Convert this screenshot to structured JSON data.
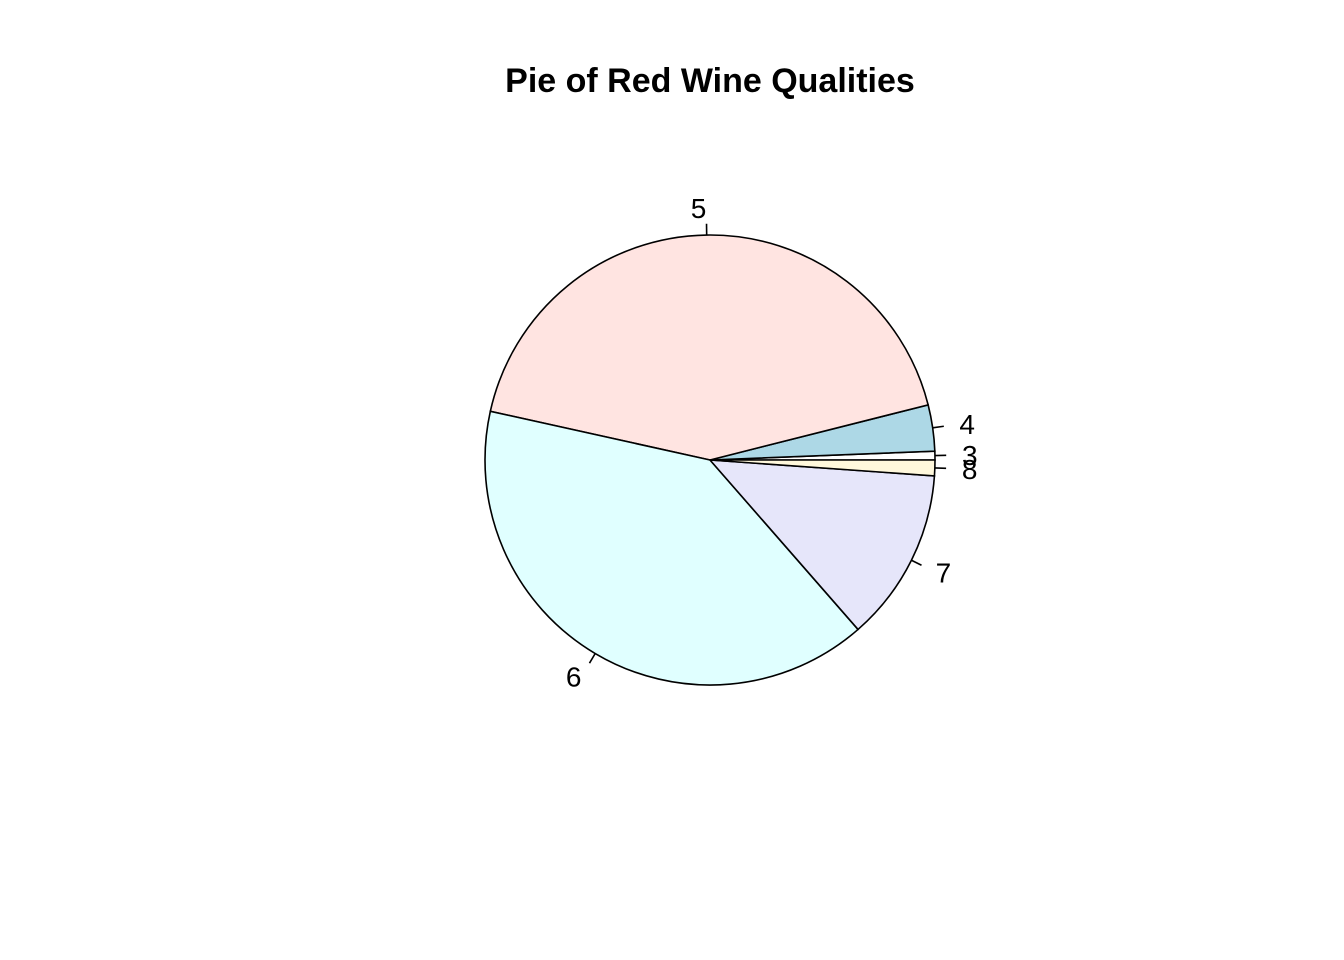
{
  "chart_data": {
    "type": "pie",
    "title": "Pie of Red Wine Qualities",
    "labels": [
      "3",
      "4",
      "5",
      "6",
      "7",
      "8"
    ],
    "values": [
      10,
      53,
      681,
      638,
      199,
      18
    ],
    "colors": [
      "#FFFFFF",
      "#ADD8E6",
      "#FFE4E1",
      "#E0FFFF",
      "#E6E6FA",
      "#FFF8DC"
    ],
    "direction": "counterclockwise",
    "start": "3 o'clock",
    "legend": "none"
  }
}
